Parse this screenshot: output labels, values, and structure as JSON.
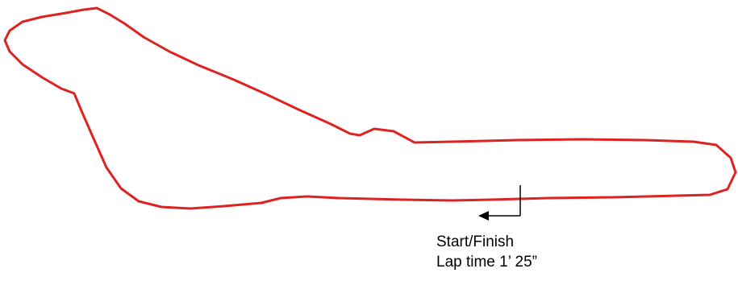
{
  "track": {
    "line_color": "#dd2222",
    "start_finish_label": "Start/Finish",
    "lap_time_label": "Lap time 1’ 25”",
    "direction": "left"
  }
}
